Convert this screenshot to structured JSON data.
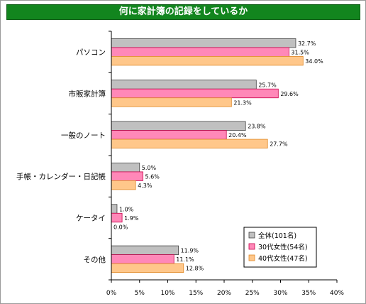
{
  "title": "何に家計簿の記録をしているか",
  "chart_data": {
    "type": "bar",
    "orientation": "horizontal",
    "title": "何に家計簿の記録をしているか",
    "categories": [
      "パソコン",
      "市販家計簿",
      "一般のノート",
      "手帳・カレンダー・日記帳",
      "ケータイ",
      "その他"
    ],
    "series": [
      {
        "name": "全体(101名)",
        "color": "#c0c0c0",
        "values": [
          32.7,
          25.7,
          23.8,
          5.0,
          1.0,
          11.9
        ],
        "labels": [
          "32.7%",
          "25.7%",
          "23.8%",
          "5.0%",
          "1.0%",
          "11.9%"
        ]
      },
      {
        "name": "30代女性(54名)",
        "color": "#ff88b8",
        "values": [
          31.5,
          29.6,
          20.4,
          5.6,
          1.9,
          11.1
        ],
        "labels": [
          "31.5%",
          "29.6%",
          "20.4%",
          "5.6%",
          "1.9%",
          "11.1%"
        ]
      },
      {
        "name": "40代女性(47名)",
        "color": "#ffc78a",
        "values": [
          34.0,
          21.3,
          27.7,
          4.3,
          0.0,
          12.8
        ],
        "labels": [
          "34.0%",
          "21.3%",
          "27.7%",
          "4.3%",
          "0.0%",
          "12.8%"
        ]
      }
    ],
    "xlim": [
      0,
      40
    ],
    "xticks": [
      "0%",
      "5%",
      "10%",
      "15%",
      "20%",
      "25%",
      "30%",
      "35%",
      "40%"
    ],
    "grid": false,
    "legend": "bottom-right"
  }
}
